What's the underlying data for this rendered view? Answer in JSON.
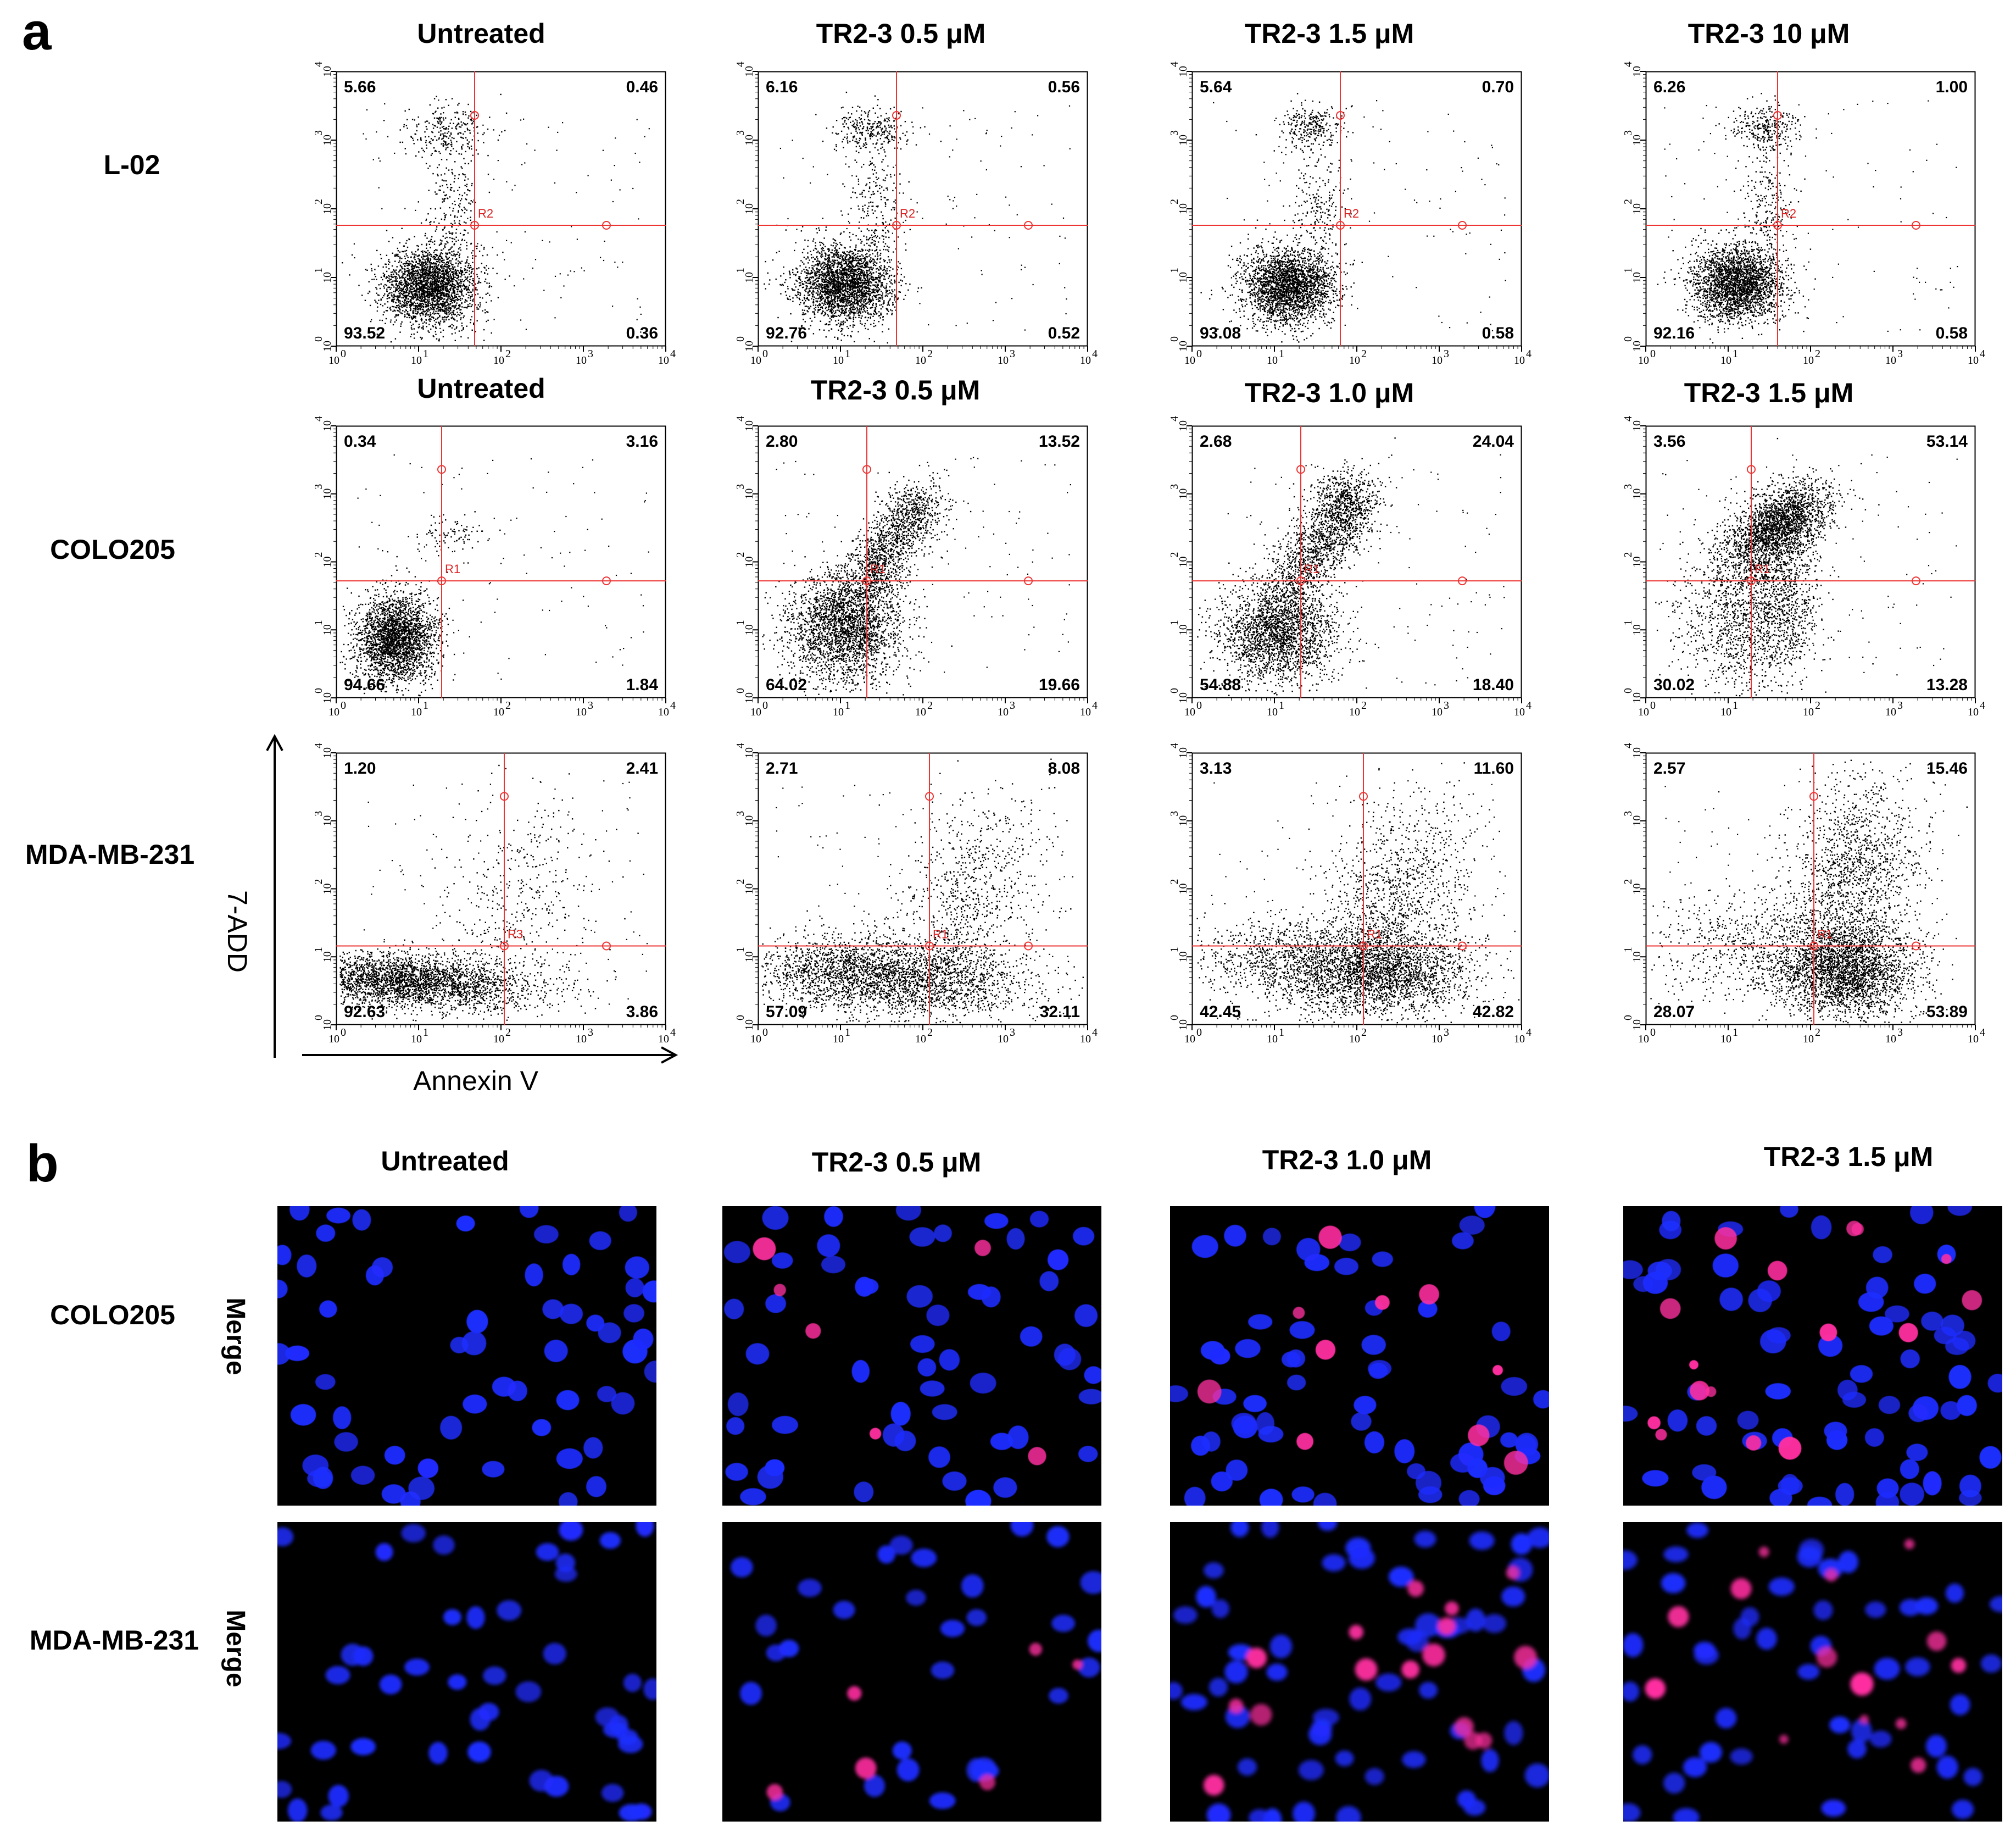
{
  "panel_a": {
    "letter": "a",
    "axis_titles": {
      "x": "Annexin V",
      "y": "7-ADD"
    },
    "tick_labels": [
      "10",
      "0",
      "10",
      "1",
      "10",
      "2",
      "10",
      "3",
      "10",
      "4"
    ],
    "rows": [
      {
        "label": "L-02",
        "titles": [
          "Untreated",
          "TR2-3  0.5 μM",
          "TR2-3  1.5 μM",
          "TR2-3  10 μM"
        ],
        "plots": [
          {
            "gate": "R2",
            "ul": "5.66",
            "ur": "0.46",
            "ll": "93.52",
            "lr": "0.36"
          },
          {
            "gate": "R2",
            "ul": "6.16",
            "ur": "0.56",
            "ll": "92.76",
            "lr": "0.52"
          },
          {
            "gate": "R2",
            "ul": "5.64",
            "ur": "0.70",
            "ll": "93.08",
            "lr": "0.58"
          },
          {
            "gate": "R2",
            "ul": "6.26",
            "ur": "1.00",
            "ll": "92.16",
            "lr": "0.58"
          }
        ]
      },
      {
        "label": "COLO205",
        "titles": [
          "Untreated",
          "TR2-3  0.5 μM",
          "TR2-3  1.0 μM",
          "TR2-3  1.5 μM"
        ],
        "plots": [
          {
            "gate": "R1",
            "ul": "0.34",
            "ur": "3.16",
            "ll": "94.66",
            "lr": "1.84"
          },
          {
            "gate": "R1",
            "ul": "2.80",
            "ur": "13.52",
            "ll": "64.02",
            "lr": "19.66"
          },
          {
            "gate": "R1",
            "ul": "2.68",
            "ur": "24.04",
            "ll": "54.88",
            "lr": "18.40"
          },
          {
            "gate": "R1",
            "ul": "3.56",
            "ur": "53.14",
            "ll": "30.02",
            "lr": "13.28"
          }
        ]
      },
      {
        "label": "MDA-MB-231",
        "titles": [
          "",
          "",
          "",
          ""
        ],
        "plots": [
          {
            "gate": "R3",
            "ul": "1.20",
            "ur": "2.41",
            "ll": "92.63",
            "lr": "3.86"
          },
          {
            "gate": "R1",
            "ul": "2.71",
            "ur": "8.08",
            "ll": "57.09",
            "lr": "32.11"
          },
          {
            "gate": "R1",
            "ul": "3.13",
            "ur": "11.60",
            "ll": "42.45",
            "lr": "42.82"
          },
          {
            "gate": "R1",
            "ul": "2.57",
            "ur": "15.46",
            "ll": "28.07",
            "lr": "53.89"
          }
        ]
      }
    ]
  },
  "panel_b": {
    "letter": "b",
    "titles": [
      "Untreated",
      "TR2-3  0.5 μM",
      "TR2-3  1.0 μM",
      "TR2-3  1.5 μM"
    ],
    "rows": [
      {
        "label": "COLO205",
        "channel": "Merge"
      },
      {
        "label": "MDA-MB-231",
        "channel": "Merge"
      }
    ],
    "colors": {
      "nucleus": "#1f2dff",
      "apoptotic": "#ff2fa0",
      "background": "#000000"
    }
  }
}
